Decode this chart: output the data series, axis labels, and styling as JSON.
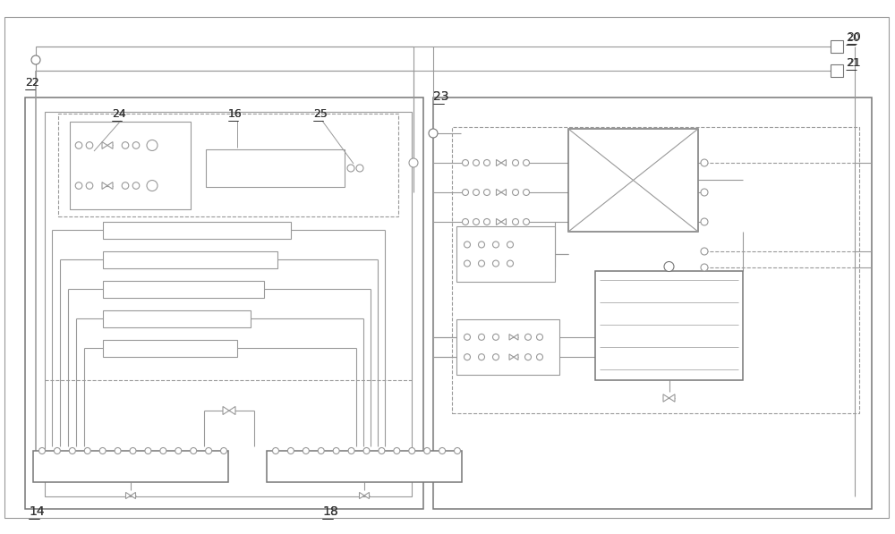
{
  "bg_color": "#ffffff",
  "lc": "#999999",
  "lc2": "#777777",
  "lc_dark": "#444444",
  "fig_w": 10.0,
  "fig_h": 5.97,
  "xlim": [
    0,
    10
  ],
  "ylim": [
    0,
    5.97
  ]
}
